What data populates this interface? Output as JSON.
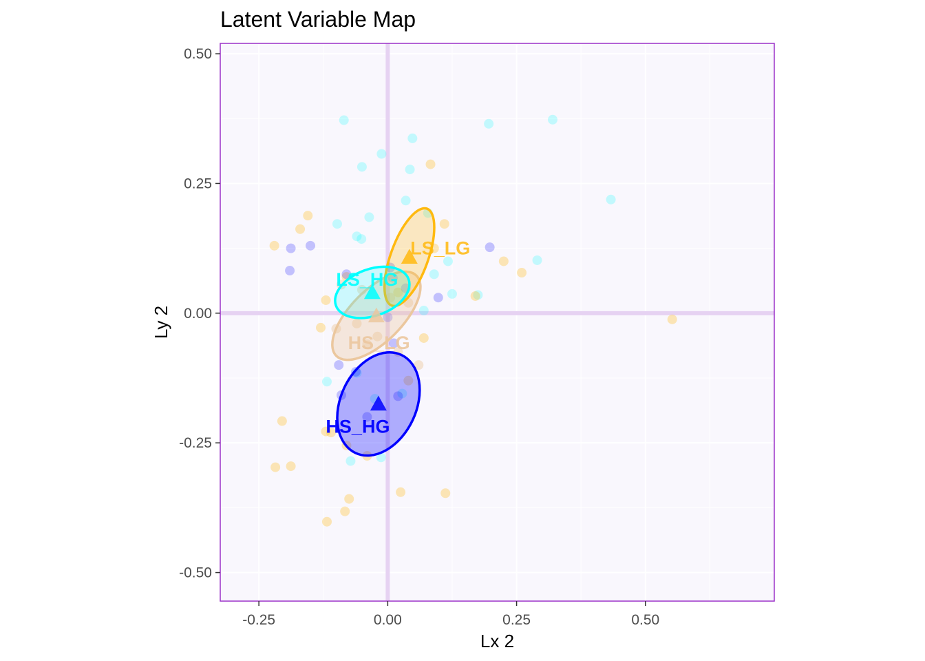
{
  "chart_data": {
    "type": "scatter",
    "title": "Latent Variable Map",
    "xlabel": "Lx 2",
    "ylabel": "Ly 2",
    "xlim": [
      -0.325,
      0.75
    ],
    "ylim": [
      -0.555,
      0.52
    ],
    "xticks": [
      -0.25,
      0.0,
      0.25,
      0.5
    ],
    "xtick_labels": [
      "-0.25",
      "0.00",
      "0.25",
      "0.50"
    ],
    "yticks": [
      -0.5,
      -0.25,
      0.0,
      0.25,
      0.5
    ],
    "ytick_labels": [
      "-0.50",
      "-0.25",
      "0.00",
      "0.25",
      "0.50"
    ],
    "grid": true,
    "background_color": "#f9f7fd",
    "border_color": "#9b30c8",
    "origin_line_color": "#e6d2f2",
    "series": [
      {
        "name": "LS_HG",
        "color": "#00ffff",
        "points": [
          [
            -0.085,
            0.372
          ],
          [
            -0.012,
            0.307
          ],
          [
            0.048,
            0.337
          ],
          [
            -0.05,
            0.282
          ],
          [
            0.043,
            0.277
          ],
          [
            0.196,
            0.365
          ],
          [
            0.32,
            0.373
          ],
          [
            0.433,
            0.219
          ],
          [
            0.035,
            0.217
          ],
          [
            0.078,
            0.193
          ],
          [
            -0.036,
            0.185
          ],
          [
            -0.098,
            0.172
          ],
          [
            -0.06,
            0.148
          ],
          [
            -0.051,
            0.143
          ],
          [
            0.117,
            0.1
          ],
          [
            0.29,
            0.102
          ],
          [
            0.125,
            0.037
          ],
          [
            0.175,
            0.035
          ],
          [
            0.07,
            0.005
          ],
          [
            0.09,
            0.075
          ],
          [
            -0.118,
            -0.132
          ],
          [
            -0.06,
            -0.115
          ],
          [
            -0.025,
            -0.165
          ],
          [
            -0.072,
            -0.285
          ],
          [
            -0.013,
            -0.278
          ],
          [
            0.028,
            -0.155
          ]
        ],
        "mean": [
          -0.03,
          0.04
        ],
        "ellipse": {
          "rx": 0.075,
          "ry": 0.045,
          "angle": 20
        }
      },
      {
        "name": "LS_LG",
        "color": "#ffb90f",
        "points": [
          [
            -0.155,
            0.188
          ],
          [
            -0.17,
            0.162
          ],
          [
            -0.22,
            0.13
          ],
          [
            0.083,
            0.287
          ],
          [
            0.11,
            0.172
          ],
          [
            0.225,
            0.1
          ],
          [
            0.26,
            0.078
          ],
          [
            0.552,
            -0.012
          ],
          [
            0.17,
            0.033
          ],
          [
            0.09,
            0.125
          ],
          [
            -0.08,
            0.07
          ],
          [
            0.02,
            0.04
          ],
          [
            -0.12,
            0.025
          ],
          [
            -0.13,
            -0.028
          ],
          [
            0.07,
            -0.048
          ],
          [
            -0.205,
            -0.208
          ],
          [
            -0.12,
            -0.228
          ],
          [
            -0.11,
            -0.23
          ],
          [
            -0.08,
            -0.255
          ],
          [
            -0.04,
            -0.275
          ],
          [
            -0.218,
            -0.297
          ],
          [
            -0.188,
            -0.295
          ],
          [
            0.025,
            -0.345
          ],
          [
            0.112,
            -0.347
          ],
          [
            -0.075,
            -0.358
          ],
          [
            -0.083,
            -0.382
          ],
          [
            -0.118,
            -0.402
          ],
          [
            0.04,
            -0.13
          ]
        ],
        "mean": [
          0.042,
          0.108
        ],
        "ellipse": {
          "rx": 0.1,
          "ry": 0.036,
          "angle": 70
        }
      },
      {
        "name": "HS_HG",
        "color": "#0000ff",
        "points": [
          [
            -0.188,
            0.125
          ],
          [
            -0.15,
            0.13
          ],
          [
            -0.19,
            0.082
          ],
          [
            -0.08,
            0.075
          ],
          [
            0.198,
            0.127
          ],
          [
            0.005,
            0.088
          ],
          [
            0.01,
            0.068
          ],
          [
            0.035,
            0.048
          ],
          [
            0.098,
            0.03
          ],
          [
            0.0,
            -0.008
          ],
          [
            0.012,
            -0.058
          ],
          [
            -0.095,
            -0.1
          ],
          [
            -0.062,
            -0.113
          ],
          [
            -0.09,
            -0.158
          ],
          [
            -0.04,
            -0.2
          ],
          [
            0.02,
            -0.16
          ]
        ],
        "mean": [
          -0.018,
          -0.175
        ],
        "ellipse": {
          "rx": 0.105,
          "ry": 0.073,
          "angle": 65
        }
      },
      {
        "name": "HS_LG",
        "color": "#ebc79e",
        "points": [
          [
            -0.09,
            0.055
          ],
          [
            -0.05,
            0.045
          ],
          [
            0.005,
            0.03
          ],
          [
            0.04,
            0.02
          ],
          [
            -0.06,
            -0.02
          ],
          [
            -0.02,
            -0.045
          ],
          [
            0.02,
            -0.075
          ],
          [
            -0.1,
            -0.03
          ],
          [
            0.06,
            -0.1
          ],
          [
            -0.04,
            -0.06
          ]
        ],
        "mean": [
          -0.022,
          -0.005
        ],
        "ellipse": {
          "rx": 0.11,
          "ry": 0.05,
          "angle": 45
        }
      }
    ]
  }
}
